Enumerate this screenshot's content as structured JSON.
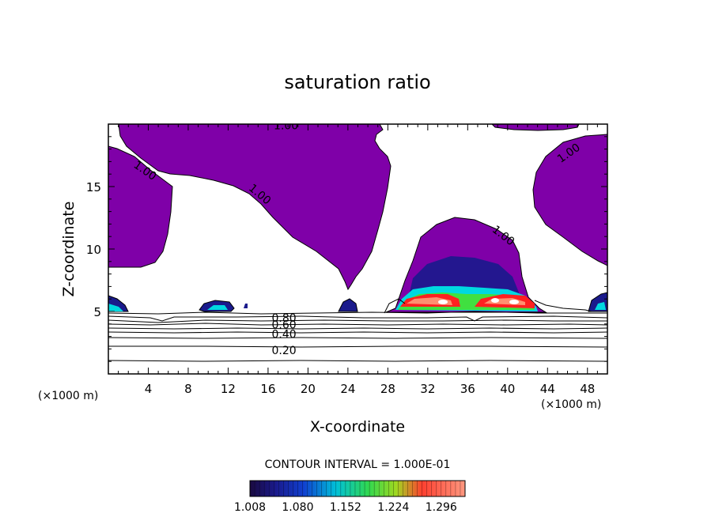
{
  "chart_data": {
    "type": "heatmap",
    "title": "saturation ratio",
    "xlabel": "X-coordinate",
    "ylabel": "Z-coordinate",
    "x_unit": "(×1000 m)",
    "y_unit": "(×1000 m)",
    "xlim": [
      0,
      50
    ],
    "ylim": [
      0,
      20
    ],
    "xticks": [
      4,
      8,
      12,
      16,
      20,
      24,
      28,
      32,
      36,
      40,
      44,
      48
    ],
    "yticks": [
      5,
      10,
      15
    ],
    "contour_interval_text": "CONTOUR INTERVAL = 1.000E-01",
    "contour_labels": [
      {
        "text": "1.00",
        "x": 17.8,
        "y": 19.9,
        "rot": 0
      },
      {
        "text": "1.00",
        "x": 3.7,
        "y": 16.3,
        "rot": 35
      },
      {
        "text": "1.00",
        "x": 15.2,
        "y": 14.4,
        "rot": 40
      },
      {
        "text": "1.00",
        "x": 39.6,
        "y": 11.1,
        "rot": 38
      },
      {
        "text": "1.00",
        "x": 46.1,
        "y": 17.7,
        "rot": -35
      },
      {
        "text": "0.80",
        "x": 17.6,
        "y": 4.5,
        "rot": 0
      },
      {
        "text": "0.60",
        "x": 17.6,
        "y": 3.95,
        "rot": 0
      },
      {
        "text": "0.40",
        "x": 17.6,
        "y": 3.2,
        "rot": 0
      },
      {
        "text": "0.20",
        "x": 17.6,
        "y": 1.9,
        "rot": 0
      }
    ],
    "colorbar": {
      "ticks": [
        "1.008",
        "1.080",
        "1.152",
        "1.224",
        "1.296"
      ],
      "min": 1.008,
      "max": 1.332
    },
    "colors": {
      "supersaturated": "#7f00a8",
      "deep_blue": "#1a1a8c",
      "cyan": "#00d8e0",
      "green": "#40e040",
      "red": "#ff2020",
      "salmon": "#ff9070"
    }
  }
}
